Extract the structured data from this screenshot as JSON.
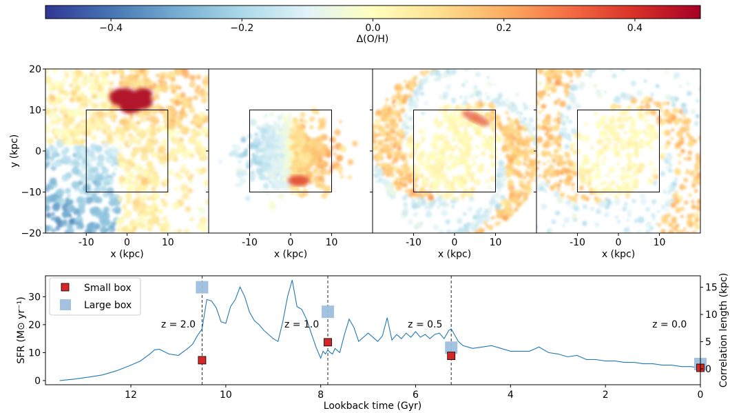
{
  "colorbar": {
    "label": "Δ(O/H)",
    "range": [
      -0.5,
      0.5
    ],
    "ticks": [
      -0.4,
      -0.2,
      0.0,
      0.2,
      0.4
    ],
    "tick_labels": [
      "−0.4",
      "−0.2",
      "0.0",
      "0.2",
      "0.4"
    ],
    "colormap": [
      "#313695",
      "#4575b4",
      "#74add1",
      "#abd9e9",
      "#e0f3f8",
      "#ffffbf",
      "#fee090",
      "#fdae61",
      "#f46d43",
      "#d73027",
      "#a50026"
    ]
  },
  "maps": {
    "xlabel": "x (kpc)",
    "ylabel": "y (kpc)",
    "x_ticks": [
      "-10",
      "0",
      "10"
    ],
    "y_ticks": [
      "20",
      "10",
      "0",
      "−10",
      "−20"
    ],
    "y_tick_values": [
      20,
      10,
      0,
      -10,
      -20
    ],
    "x_tick_values": [
      -10,
      0,
      10
    ],
    "extent": [
      -20,
      20
    ],
    "inner_box": [
      -10,
      10
    ],
    "panels": [
      {
        "id": "z2"
      },
      {
        "id": "z1"
      },
      {
        "id": "z05"
      },
      {
        "id": "z0"
      }
    ]
  },
  "chart_data": {
    "type": "line",
    "xlabel": "Lookback time (Gyr)",
    "ylabel": "SFR (M⊙ yr⁻¹)",
    "ylabel_right": "Correlation length (kpc)",
    "xlim": [
      13.8,
      0
    ],
    "ylim": [
      -1.5,
      37.5
    ],
    "ylim_right": [
      -2.9,
      17.1
    ],
    "x_ticks": [
      12,
      10,
      8,
      6,
      4,
      2,
      0
    ],
    "y_ticks": [
      0,
      10,
      20,
      30
    ],
    "y_ticks_right": [
      0,
      5,
      10,
      15
    ],
    "x_tick_labels": [
      "12",
      "10",
      "8",
      "6",
      "4",
      "2",
      "0"
    ],
    "y_tick_labels": [
      "0",
      "10",
      "20",
      "30"
    ],
    "y_tick_labels_right": [
      "0",
      "5",
      "10",
      "15"
    ],
    "legend": {
      "placement": "upper-left",
      "entries": [
        "Small box",
        "Large box"
      ]
    },
    "vlines": [
      10.5,
      7.85,
      5.25
    ],
    "redshift_labels": [
      {
        "text": "z = 2.0",
        "x": 11.0,
        "y": 19
      },
      {
        "text": "z = 1.0",
        "x": 8.4,
        "y": 19
      },
      {
        "text": "z = 0.5",
        "x": 5.8,
        "y": 19
      },
      {
        "text": "z = 0.0",
        "x": 0.65,
        "y": 19
      }
    ],
    "sfr": {
      "color": "#1f77b4",
      "x": [
        13.5,
        13.2,
        12.9,
        12.6,
        12.3,
        12.0,
        11.8,
        11.6,
        11.5,
        11.4,
        11.2,
        11.0,
        10.8,
        10.7,
        10.6,
        10.5,
        10.4,
        10.3,
        10.2,
        10.1,
        10.0,
        9.9,
        9.8,
        9.7,
        9.6,
        9.5,
        9.4,
        9.3,
        9.2,
        9.1,
        9.0,
        8.9,
        8.8,
        8.7,
        8.6,
        8.5,
        8.4,
        8.3,
        8.2,
        8.1,
        8.0,
        7.95,
        7.9,
        7.85,
        7.8,
        7.75,
        7.7,
        7.6,
        7.5,
        7.4,
        7.3,
        7.2,
        7.1,
        7.0,
        6.9,
        6.8,
        6.7,
        6.6,
        6.5,
        6.4,
        6.3,
        6.2,
        6.1,
        6.0,
        5.9,
        5.8,
        5.7,
        5.6,
        5.5,
        5.4,
        5.3,
        5.25,
        5.2,
        5.1,
        5.0,
        4.9,
        4.8,
        4.6,
        4.4,
        4.2,
        4.0,
        3.8,
        3.6,
        3.4,
        3.2,
        3.0,
        2.8,
        2.6,
        2.4,
        2.2,
        2.0,
        1.8,
        1.6,
        1.4,
        1.2,
        1.0,
        0.8,
        0.6,
        0.4,
        0.2,
        0.0
      ],
      "y": [
        0,
        0.5,
        1.2,
        2.0,
        3.5,
        5.5,
        7.0,
        9.5,
        11.0,
        11.2,
        9.5,
        9.0,
        11.5,
        13.0,
        16.0,
        18.5,
        29.0,
        28.5,
        26.0,
        21.0,
        20.5,
        26.5,
        29.0,
        33.5,
        30.0,
        24.5,
        21.5,
        20.0,
        18.0,
        16.5,
        15.0,
        14.0,
        21.0,
        30.0,
        36.0,
        26.5,
        25.5,
        22.0,
        17.0,
        12.0,
        8.0,
        10.5,
        9.5,
        11.0,
        10.0,
        9.5,
        11.5,
        10.0,
        16.5,
        22.0,
        19.0,
        14.0,
        15.5,
        17.0,
        15.5,
        14.0,
        16.0,
        22.5,
        14.5,
        16.5,
        15.0,
        17.0,
        15.5,
        17.5,
        15.5,
        16.5,
        15.0,
        16.5,
        17.0,
        15.0,
        18.0,
        18.5,
        17.0,
        14.0,
        12.5,
        12.0,
        11.5,
        12.0,
        12.5,
        11.5,
        10.5,
        10.5,
        10.5,
        12.0,
        10.0,
        9.5,
        8.5,
        9.0,
        7.5,
        7.5,
        7.0,
        7.0,
        6.5,
        6.5,
        6.0,
        6.0,
        5.5,
        5.5,
        5.0,
        5.0,
        4.5
      ]
    },
    "small_box": {
      "color": "#d62728",
      "x": [
        10.5,
        7.85,
        5.25,
        0.0
      ],
      "y": [
        1.6,
        4.9,
        2.4,
        0.2
      ]
    },
    "large_box": {
      "color": "#9ebfdd",
      "x": [
        10.5,
        7.85,
        5.25,
        0.0
      ],
      "y": [
        15.0,
        10.5,
        3.9,
        0.9
      ]
    }
  }
}
